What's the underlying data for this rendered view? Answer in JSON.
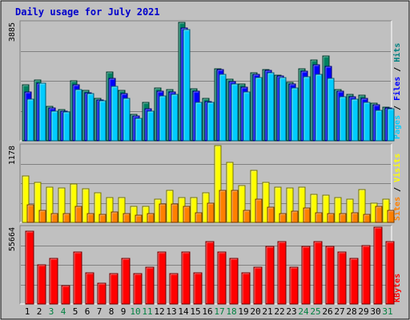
{
  "chart_data": {
    "type": "bar",
    "title": "Daily usage for July 2021",
    "days": [
      "1",
      "2",
      "3",
      "4",
      "5",
      "6",
      "7",
      "8",
      "9",
      "10",
      "11",
      "12",
      "13",
      "14",
      "15",
      "16",
      "17",
      "18",
      "19",
      "20",
      "21",
      "22",
      "23",
      "24",
      "25",
      "26",
      "27",
      "28",
      "29",
      "30",
      "31"
    ],
    "weekend_days": [
      "3",
      "4",
      "10",
      "11",
      "17",
      "18",
      "24",
      "25",
      "31"
    ],
    "panels": {
      "hits": {
        "max_label": "3885",
        "ylim": [
          0,
          3885
        ],
        "label_parts": [
          {
            "name": "pages",
            "text": "Pages",
            "color": "#00ccff"
          },
          {
            "name": "sep1",
            "text": " / ",
            "color": "#000000"
          },
          {
            "name": "files",
            "text": "Files",
            "color": "#0000ff"
          },
          {
            "name": "sep2",
            "text": " / ",
            "color": "#000000"
          },
          {
            "name": "hits",
            "text": "Hits",
            "color": "#008080"
          }
        ],
        "series": [
          {
            "name": "Hits",
            "color": "#008060",
            "values": [
              1850,
              1990,
              1140,
              1020,
              1970,
              1650,
              1380,
              2270,
              1650,
              860,
              1250,
              1720,
              1690,
              3885,
              1700,
              1380,
              2370,
              2030,
              1860,
              2240,
              2340,
              2160,
              1920,
              2360,
              2660,
              2790,
              1690,
              1530,
              1500,
              1240,
              1100
            ]
          },
          {
            "name": "Files",
            "color": "#0000ff",
            "values": [
              1600,
              1900,
              1080,
              980,
              1840,
              1580,
              1330,
              2050,
              1560,
              820,
              1060,
              1620,
              1610,
              3690,
              1640,
              1280,
              2330,
              1950,
              1760,
              2180,
              2300,
              2120,
              1860,
              2290,
              2490,
              2450,
              1620,
              1450,
              1390,
              1180,
              1070
            ]
          },
          {
            "name": "Pages",
            "color": "#00ccff",
            "values": [
              1360,
              1880,
              970,
              950,
              1690,
              1540,
              1320,
              1790,
              1390,
              740,
              980,
              1470,
              1510,
              3660,
              1270,
              1250,
              2180,
              1870,
              1590,
              2080,
              2240,
              2070,
              1720,
              2110,
              2190,
              2040,
              1440,
              1360,
              1260,
              990,
              1050
            ]
          }
        ]
      },
      "visits": {
        "max_label": "1178",
        "ylim": [
          0,
          1178
        ],
        "label_parts": [
          {
            "name": "sites",
            "text": "Sites",
            "color": "#ff8000"
          },
          {
            "name": "sep3",
            "text": " / ",
            "color": "#000000"
          },
          {
            "name": "visits",
            "text": "Visits",
            "color": "#ffff00"
          }
        ],
        "series": [
          {
            "name": "Visits",
            "color": "#ffff00",
            "values": [
              710,
              610,
              540,
              530,
              590,
              510,
              450,
              380,
              380,
              240,
              240,
              360,
              490,
              380,
              380,
              450,
              1178,
              920,
              560,
              800,
              610,
              540,
              530,
              540,
              430,
              420,
              380,
              350,
              500,
              300,
              360
            ]
          },
          {
            "name": "Sites",
            "color": "#ff8000",
            "values": [
              270,
              180,
              130,
              130,
              240,
              140,
              120,
              160,
              130,
              110,
              130,
              280,
              280,
              240,
              150,
              290,
              490,
              490,
              180,
              350,
              230,
              140,
              170,
              220,
              150,
              140,
              140,
              150,
              120,
              250,
              180
            ]
          }
        ]
      },
      "kbytes": {
        "max_label": "55664",
        "ylim": [
          0,
          55664
        ],
        "label_parts": [
          {
            "name": "kbytes",
            "text": "KBytes",
            "color": "#ff0000"
          }
        ],
        "series": [
          {
            "name": "KBytes",
            "color": "#ff0000",
            "values": [
              52700,
              28400,
              33100,
              13300,
              37900,
              22800,
              15300,
              21900,
              33100,
              21900,
              26500,
              37900,
              21900,
              37900,
              22800,
              45400,
              37900,
              33100,
              22800,
              26500,
              41600,
              45400,
              26500,
              41600,
              45400,
              41600,
              37900,
              33100,
              42600,
              55664,
              45400
            ]
          }
        ]
      }
    }
  }
}
